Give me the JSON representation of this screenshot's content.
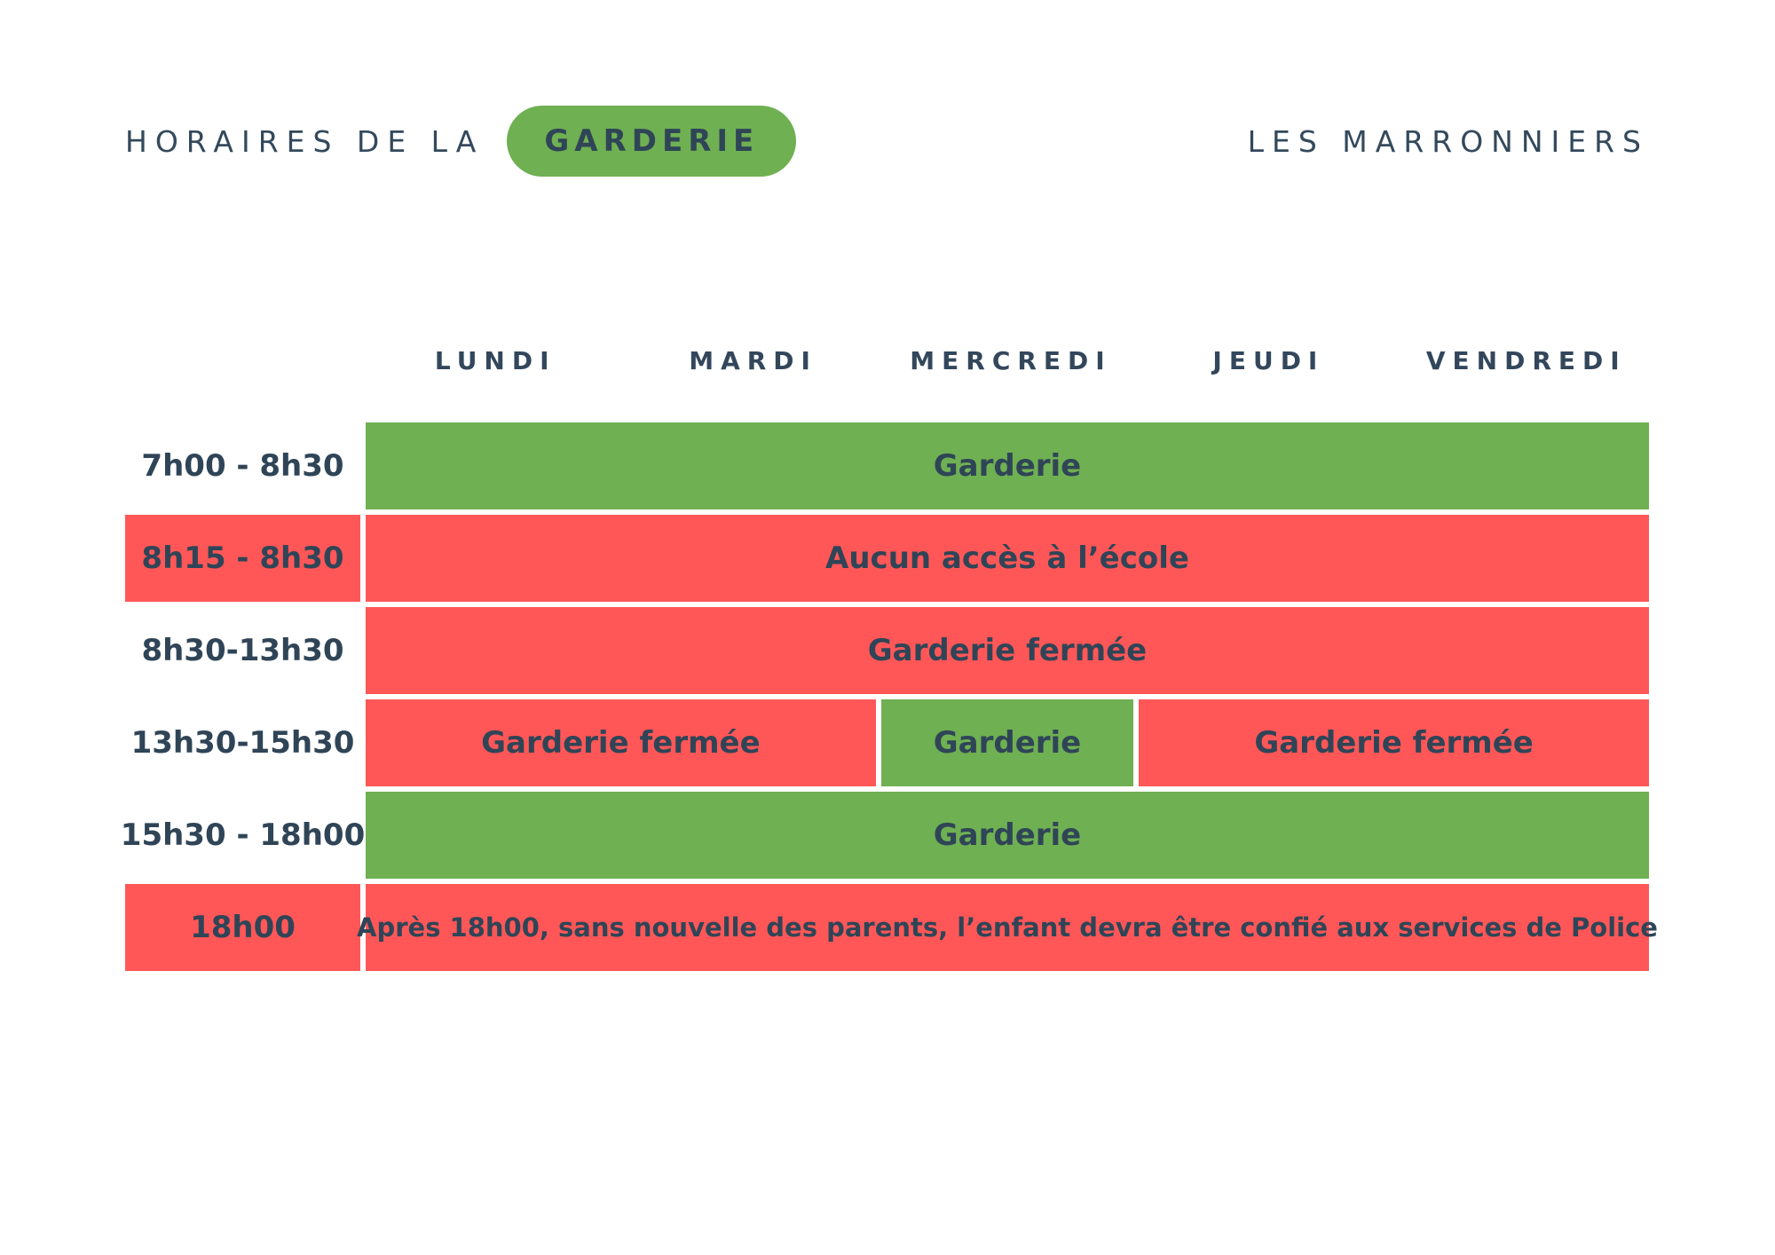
{
  "header": {
    "title_prefix": "HORAIRES DE LA",
    "title_badge": "GARDERIE",
    "school_name": "LES MARRONNIERS"
  },
  "colors": {
    "open_green": "#6fb052",
    "closed_red": "#ff5757",
    "text_navy": "#2f4557",
    "background": "#ffffff"
  },
  "schedule": {
    "days": [
      "LUNDI",
      "MARDI",
      "MERCREDI",
      "JEUDI",
      "VENDREDI"
    ],
    "rows": [
      {
        "time": "7h00 - 8h30",
        "label_bg": "white",
        "segments": [
          {
            "text": "Garderie",
            "status": "open",
            "span": 5
          }
        ]
      },
      {
        "time": "8h15 - 8h30",
        "label_bg": "red",
        "segments": [
          {
            "text": "Aucun accès à l’école",
            "status": "closed",
            "span": 5
          }
        ]
      },
      {
        "time": "8h30-13h30",
        "label_bg": "white",
        "segments": [
          {
            "text": "Garderie fermée",
            "status": "closed",
            "span": 5
          }
        ]
      },
      {
        "time": "13h30-15h30",
        "label_bg": "white",
        "segments": [
          {
            "text": "Garderie fermée",
            "status": "closed",
            "span": 2
          },
          {
            "text": "Garderie",
            "status": "open",
            "span": 1
          },
          {
            "text": "Garderie fermée",
            "status": "closed",
            "span": 2
          }
        ]
      },
      {
        "time": "15h30 - 18h00",
        "label_bg": "white",
        "segments": [
          {
            "text": "Garderie",
            "status": "open",
            "span": 5
          }
        ]
      },
      {
        "time": "18h00",
        "label_bg": "red",
        "segments": [
          {
            "text": "Après 18h00, sans nouvelle des parents, l’enfant devra être confié aux services de Police",
            "status": "closed",
            "span": 5,
            "small": true
          }
        ]
      }
    ]
  }
}
